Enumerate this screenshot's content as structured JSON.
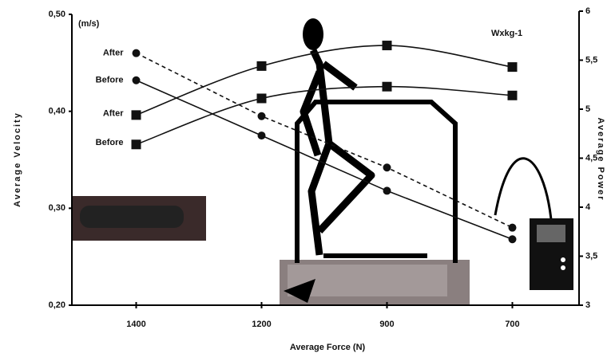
{
  "chart_data": {
    "type": "line",
    "y_unit": "(m/s)",
    "y2_unit": "Wxkg-1",
    "x_label": "Average Force (N)",
    "y_label": "Average Velocity",
    "y2_label": "Average Power",
    "categories": [
      "1400",
      "1200",
      "900",
      "700"
    ],
    "ylim": [
      0.2,
      0.5
    ],
    "yticks": [
      {
        "value": 0.2,
        "label": "0,20"
      },
      {
        "value": 0.3,
        "label": "0,30"
      },
      {
        "value": 0.4,
        "label": "0,40"
      },
      {
        "value": 0.5,
        "label": "0,50"
      }
    ],
    "y2lim": [
      3,
      6
    ],
    "y2ticks": [
      3,
      {
        "value": 3.5,
        "label": "3,5"
      },
      4,
      {
        "value": 4.5,
        "label": "4,5"
      },
      5,
      {
        "value": 5.5,
        "label": "5,5"
      },
      6
    ],
    "series": [
      {
        "name": "After",
        "color": "#111111",
        "marker": "circle",
        "dashed": true,
        "values": [
          0.46,
          0.395,
          0.342,
          0.28
        ]
      },
      {
        "name": "Before",
        "color": "#111111",
        "marker": "circle",
        "dashed": false,
        "values": [
          0.432,
          0.375,
          0.318,
          0.268
        ]
      },
      {
        "name": "After",
        "color": "#111111",
        "marker": "square",
        "dashed": false,
        "axis": "y2",
        "values": [
          4.94,
          5.44,
          5.65,
          5.43
        ]
      },
      {
        "name": "Before",
        "color": "#111111",
        "marker": "square",
        "dashed": false,
        "axis": "y2",
        "values": [
          4.64,
          5.11,
          5.23,
          5.14
        ]
      }
    ]
  }
}
